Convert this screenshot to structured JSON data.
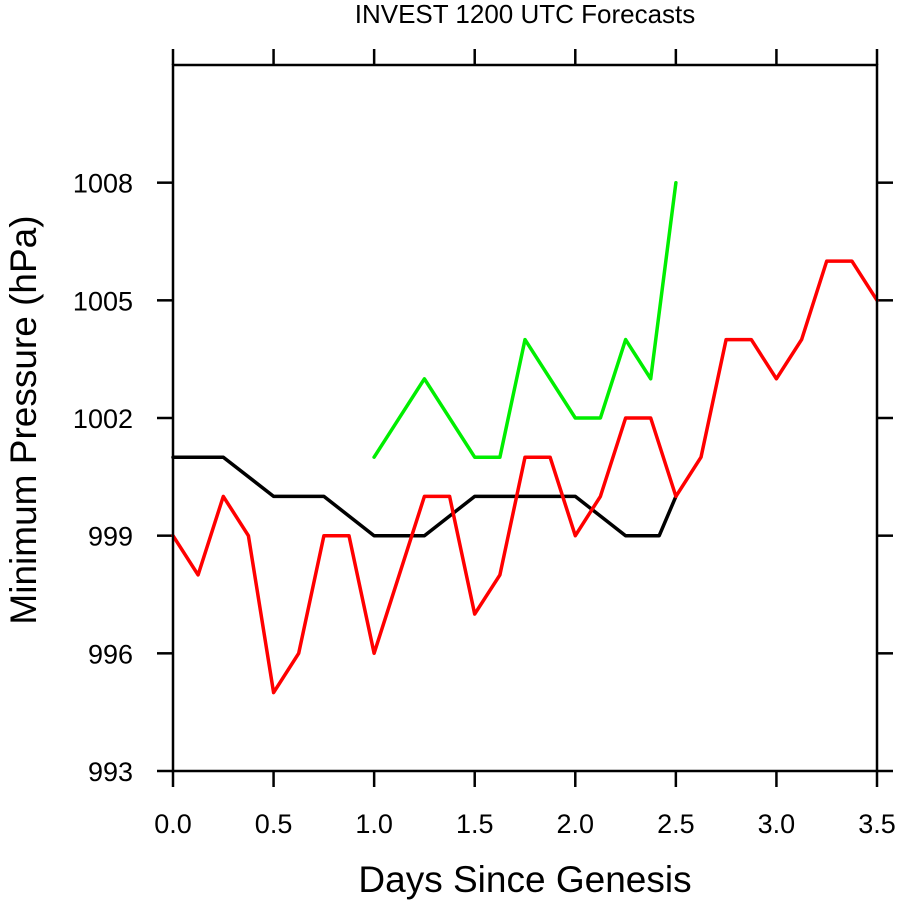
{
  "chart_data": {
    "type": "line",
    "title": "INVEST 1200 UTC Forecasts",
    "xlabel": "Days Since Genesis",
    "ylabel": "Minimum Pressure (hPa)",
    "xlim": [
      0,
      3.5
    ],
    "ylim": [
      993,
      1011
    ],
    "x_ticks": [
      0.0,
      0.5,
      1.0,
      1.5,
      2.0,
      2.5,
      3.0,
      3.5
    ],
    "x_tick_labels": [
      "0.0",
      "0.5",
      "1.0",
      "1.5",
      "2.0",
      "2.5",
      "3.0",
      "3.5"
    ],
    "y_ticks": [
      993,
      996,
      999,
      1002,
      1005,
      1008
    ],
    "y_tick_labels": [
      "993",
      "996",
      "999",
      "1002",
      "1005",
      "1008"
    ],
    "grid": false,
    "series": [
      {
        "color": "#000000",
        "x": [
          0,
          0.25,
          0.5,
          0.75,
          1.0,
          1.25,
          1.5,
          1.75,
          2.0,
          2.25,
          2.417,
          2.5
        ],
        "y": [
          1001,
          1001,
          1000,
          1000,
          999,
          999,
          1000,
          1000,
          1000,
          999,
          999,
          1000
        ]
      },
      {
        "color": "#ff0000",
        "x": [
          0,
          0.125,
          0.25,
          0.375,
          0.5,
          0.625,
          0.75,
          0.875,
          1.0,
          1.25,
          1.375,
          1.5,
          1.625,
          1.75,
          1.875,
          2.0,
          2.125,
          2.25,
          2.375,
          2.5,
          2.625,
          2.75,
          2.875,
          3.0,
          3.125,
          3.25,
          3.375,
          3.5
        ],
        "y": [
          999,
          998,
          1000,
          999,
          995,
          996,
          999,
          999,
          996,
          1000,
          1000,
          997,
          998,
          1001,
          1001,
          999,
          1000,
          1002,
          1002,
          1000,
          1001,
          1004,
          1004,
          1003,
          1004,
          1006,
          1006,
          1005
        ]
      },
      {
        "color": "#00ee00",
        "x": [
          1.0,
          1.25,
          1.5,
          1.625,
          1.75,
          2.0,
          2.125,
          2.25,
          2.375,
          2.5
        ],
        "y": [
          1001,
          1003,
          1001,
          1001,
          1004,
          1002,
          1002,
          1004,
          1003,
          1008
        ]
      }
    ]
  }
}
